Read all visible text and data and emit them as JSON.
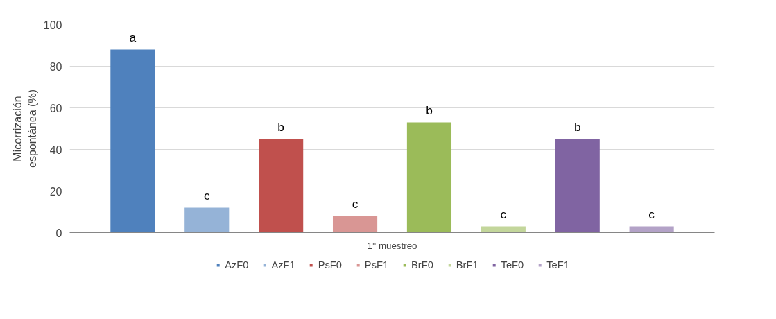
{
  "chart_data": {
    "type": "bar",
    "ylabel": "Micorrización\nespontánea (%)",
    "categories": [
      "1° muestreo"
    ],
    "series": [
      {
        "name": "AzF0",
        "color": "#4f81bd",
        "values": [
          88
        ]
      },
      {
        "name": "AzF1",
        "color": "#95b3d7",
        "values": [
          12
        ]
      },
      {
        "name": "PsF0",
        "color": "#c0504d",
        "values": [
          45
        ]
      },
      {
        "name": "PsF1",
        "color": "#d99694",
        "values": [
          8
        ]
      },
      {
        "name": "BrF0",
        "color": "#9bbb59",
        "values": [
          53
        ]
      },
      {
        "name": "BrF1",
        "color": "#c3d69b",
        "values": [
          3
        ]
      },
      {
        "name": "TeF0",
        "color": "#8064a2",
        "values": [
          45
        ]
      },
      {
        "name": "TeF1",
        "color": "#b3a2c7",
        "values": [
          3
        ]
      }
    ],
    "annotations": [
      "a",
      "c",
      "b",
      "c",
      "b",
      "c",
      "b",
      "c"
    ],
    "ylim": [
      0,
      100
    ],
    "yticks": [
      0,
      20,
      40,
      60,
      80,
      100
    ],
    "grid": "y",
    "legend": "bottom"
  }
}
